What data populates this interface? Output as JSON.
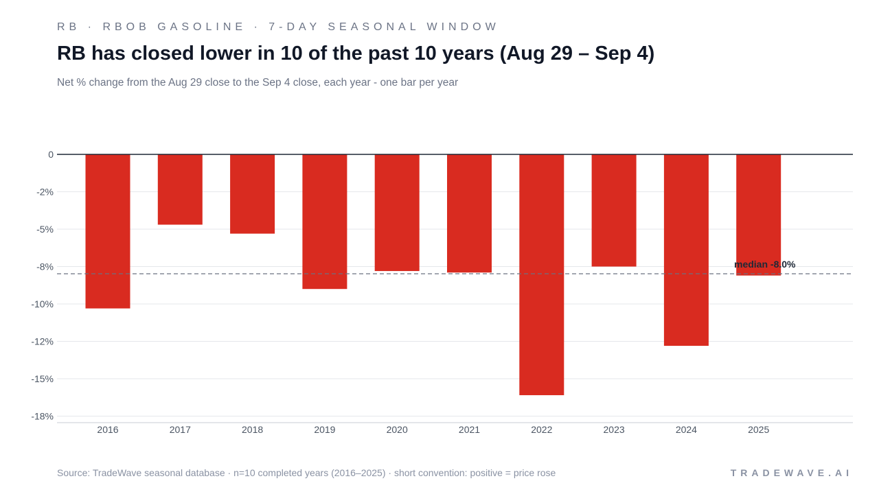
{
  "header": {
    "eyebrow": "RB · RBOB GASOLINE · 7-DAY SEASONAL WINDOW",
    "title": "RB has closed lower in 10 of the past 10 years (Aug 29 – Sep 4)",
    "subtitle": "Net % change from the Aug 29 close to the Sep 4 close, each year - one bar per year"
  },
  "footer": {
    "source": "Source: TradeWave seasonal database · n=10 completed years (2016–2025) · short convention: positive = price rose",
    "brand": "TRADEWAVE.AI"
  },
  "colors": {
    "bar": "#d92b20",
    "zero_line": "#1f2937",
    "grid": "#e5e7eb",
    "median_line": "#6b7280",
    "tick_text": "#4b5563"
  },
  "chart_data": {
    "type": "bar",
    "categories": [
      "2016",
      "2017",
      "2018",
      "2019",
      "2020",
      "2021",
      "2022",
      "2023",
      "2024",
      "2025"
    ],
    "values": [
      -10.3,
      -4.7,
      -5.3,
      -9.0,
      -7.8,
      -7.9,
      -16.1,
      -7.5,
      -12.8,
      -8.1
    ],
    "ylim": [
      -18,
      0
    ],
    "yticks": [
      0,
      -2.5,
      -5,
      -7.5,
      -10,
      -12.5,
      -15,
      -17.5
    ],
    "ytick_labels": [
      "0",
      "-2%",
      "-5%",
      "-8%",
      "-10%",
      "-12%",
      "-15%",
      "-18%"
    ],
    "median": -8.0,
    "median_label": "median -8.0%",
    "grid": true,
    "xlabel": "",
    "ylabel": ""
  }
}
